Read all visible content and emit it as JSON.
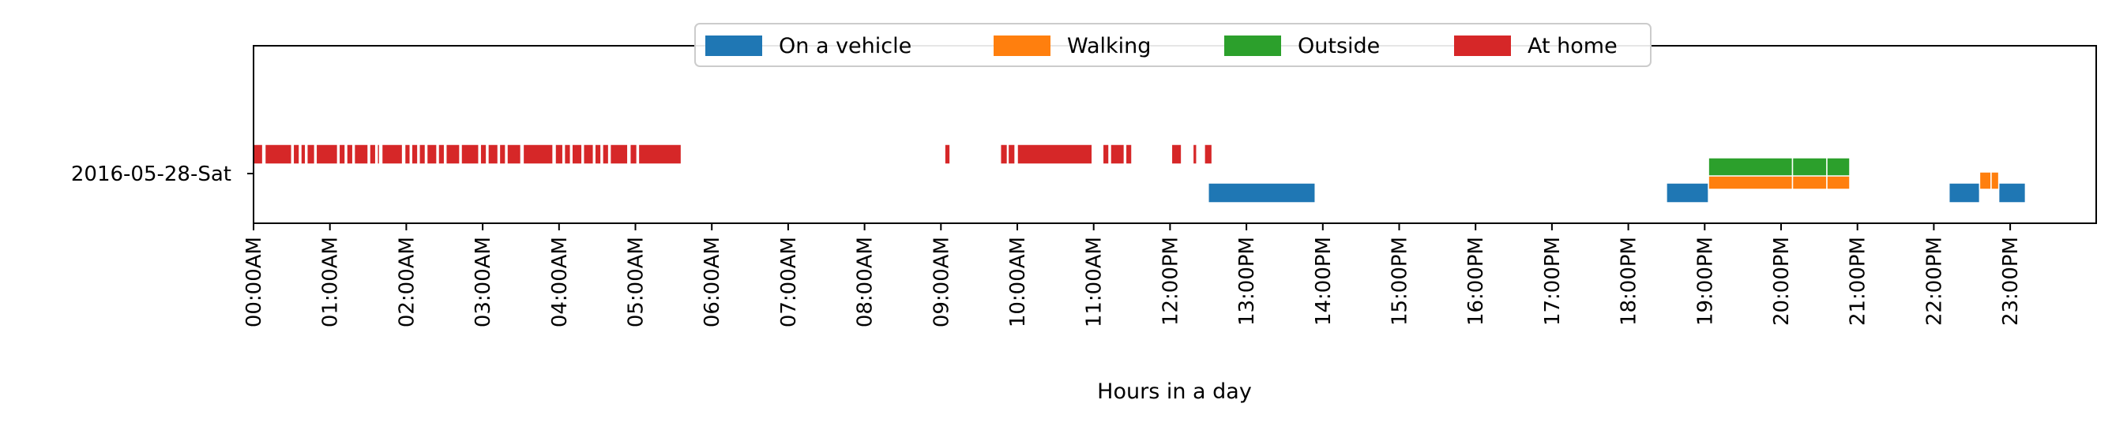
{
  "chart_data": {
    "type": "timeline",
    "xlabel": "Hours in a day",
    "xlim": [
      0,
      24
    ],
    "category": "2016-05-28-Sat",
    "x_ticks": [
      {
        "value": 0,
        "label": "00:00AM"
      },
      {
        "value": 1,
        "label": "01:00AM"
      },
      {
        "value": 2,
        "label": "02:00AM"
      },
      {
        "value": 3,
        "label": "03:00AM"
      },
      {
        "value": 4,
        "label": "04:00AM"
      },
      {
        "value": 5,
        "label": "05:00AM"
      },
      {
        "value": 6,
        "label": "06:00AM"
      },
      {
        "value": 7,
        "label": "07:00AM"
      },
      {
        "value": 8,
        "label": "08:00AM"
      },
      {
        "value": 9,
        "label": "09:00AM"
      },
      {
        "value": 10,
        "label": "10:00AM"
      },
      {
        "value": 11,
        "label": "11:00AM"
      },
      {
        "value": 12,
        "label": "12:00PM"
      },
      {
        "value": 13,
        "label": "13:00PM"
      },
      {
        "value": 14,
        "label": "14:00PM"
      },
      {
        "value": 15,
        "label": "15:00PM"
      },
      {
        "value": 16,
        "label": "16:00PM"
      },
      {
        "value": 17,
        "label": "17:00PM"
      },
      {
        "value": 18,
        "label": "18:00PM"
      },
      {
        "value": 19,
        "label": "19:00PM"
      },
      {
        "value": 20,
        "label": "20:00PM"
      },
      {
        "value": 21,
        "label": "21:00PM"
      },
      {
        "value": 22,
        "label": "22:00PM"
      },
      {
        "value": 23,
        "label": "23:00PM"
      }
    ],
    "legend_position": "top-center",
    "series": [
      {
        "name": "On a vehicle",
        "color": "#1f77b4",
        "lane": 0,
        "intervals": [
          [
            12.5,
            13.9
          ],
          [
            18.5,
            19.05
          ],
          [
            22.2,
            22.6
          ],
          [
            22.85,
            23.2
          ]
        ]
      },
      {
        "name": "Walking",
        "color": "#ff7f0e",
        "lane": 1,
        "intervals": [
          [
            19.05,
            20.15
          ],
          [
            20.15,
            20.6
          ],
          [
            20.6,
            20.9
          ],
          [
            22.6,
            22.75
          ],
          [
            22.75,
            22.85
          ]
        ]
      },
      {
        "name": "Outside",
        "color": "#2ca02c",
        "lane": 2,
        "intervals": [
          [
            19.05,
            20.15
          ],
          [
            20.15,
            20.6
          ],
          [
            20.6,
            20.9
          ]
        ]
      },
      {
        "name": "At home",
        "color": "#d62728",
        "lane": 3,
        "intervals": [
          [
            0.0,
            0.12
          ],
          [
            0.15,
            0.5
          ],
          [
            0.52,
            0.6
          ],
          [
            0.62,
            0.68
          ],
          [
            0.7,
            0.8
          ],
          [
            0.82,
            1.1
          ],
          [
            1.12,
            1.2
          ],
          [
            1.22,
            1.3
          ],
          [
            1.32,
            1.5
          ],
          [
            1.52,
            1.6
          ],
          [
            1.62,
            1.65
          ],
          [
            1.68,
            1.95
          ],
          [
            1.98,
            2.05
          ],
          [
            2.07,
            2.15
          ],
          [
            2.17,
            2.25
          ],
          [
            2.27,
            2.4
          ],
          [
            2.42,
            2.5
          ],
          [
            2.52,
            2.7
          ],
          [
            2.72,
            2.95
          ],
          [
            2.97,
            3.05
          ],
          [
            3.07,
            3.2
          ],
          [
            3.22,
            3.3
          ],
          [
            3.32,
            3.5
          ],
          [
            3.53,
            3.92
          ],
          [
            3.95,
            4.05
          ],
          [
            4.07,
            4.15
          ],
          [
            4.17,
            4.3
          ],
          [
            4.32,
            4.45
          ],
          [
            4.47,
            4.55
          ],
          [
            4.57,
            4.65
          ],
          [
            4.67,
            4.9
          ],
          [
            4.93,
            5.02
          ],
          [
            5.04,
            5.6
          ],
          [
            9.05,
            9.12
          ],
          [
            9.78,
            9.87
          ],
          [
            9.88,
            9.97
          ],
          [
            10.0,
            10.98
          ],
          [
            11.12,
            11.2
          ],
          [
            11.22,
            11.4
          ],
          [
            11.42,
            11.5
          ],
          [
            12.02,
            12.15
          ],
          [
            12.3,
            12.35
          ],
          [
            12.45,
            12.55
          ]
        ]
      }
    ]
  }
}
